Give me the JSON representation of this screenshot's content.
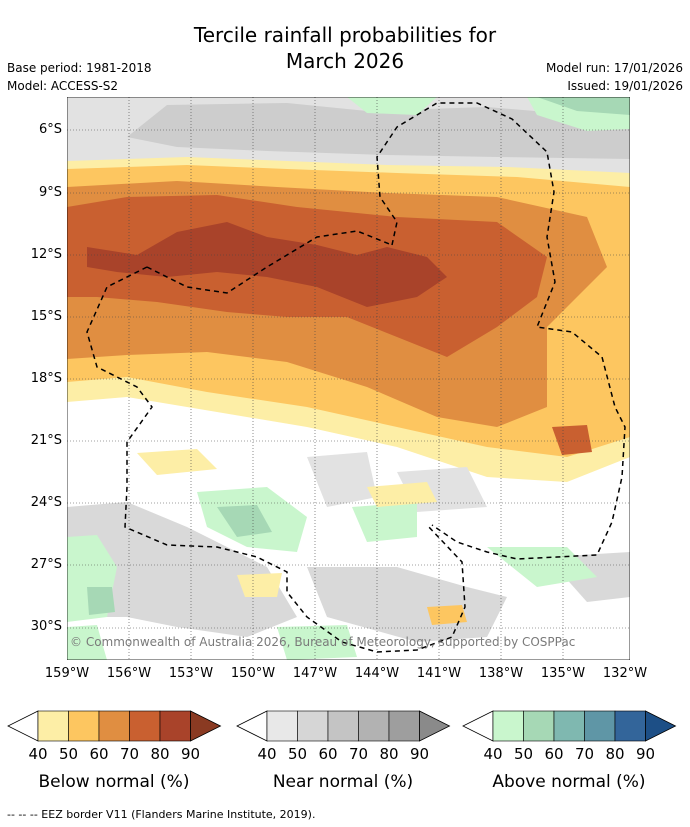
{
  "title_line1": "Tercile rainfall probabilities for",
  "title_line2": "March 2026",
  "base_period": "Base period: 1981-2018",
  "model": "Model: ACCESS-S2",
  "model_run": "Model run: 17/01/2026",
  "issued": "Issued: 19/01/2026",
  "map": {
    "lat_labels": [
      "6°S",
      "9°S",
      "12°S",
      "15°S",
      "18°S",
      "21°S",
      "24°S",
      "27°S",
      "30°S"
    ],
    "lon_labels": [
      "159°W",
      "156°W",
      "153°W",
      "150°W",
      "147°W",
      "144°W",
      "141°W",
      "138°W",
      "135°W",
      "132°W"
    ],
    "copyright": "© Commonwealth of Australia 2026, Bureau of Meteorology, supported by COSPPac"
  },
  "legends": [
    {
      "caption": "Below normal (%)",
      "ticks": [
        "40",
        "50",
        "60",
        "70",
        "80",
        "90"
      ],
      "colors": [
        "#fdeea6",
        "#fdc660",
        "#e08e41",
        "#c96030",
        "#a9432a",
        "#8a3a22"
      ]
    },
    {
      "caption": "Near normal (%)",
      "ticks": [
        "40",
        "50",
        "60",
        "70",
        "80",
        "90"
      ],
      "colors": [
        "#e8e8e8",
        "#d6d6d6",
        "#c4c4c4",
        "#b2b2b2",
        "#9e9e9e",
        "#8a8a8a"
      ]
    },
    {
      "caption": "Above normal (%)",
      "ticks": [
        "40",
        "50",
        "60",
        "70",
        "80",
        "90"
      ],
      "colors": [
        "#c9f6cd",
        "#a6d8b5",
        "#7fb8b0",
        "#5f96a6",
        "#33659a",
        "#1d4f86"
      ]
    }
  ],
  "footer": "--  --  -- EEZ border V11 (Flanders Marine Institute, 2019)."
}
